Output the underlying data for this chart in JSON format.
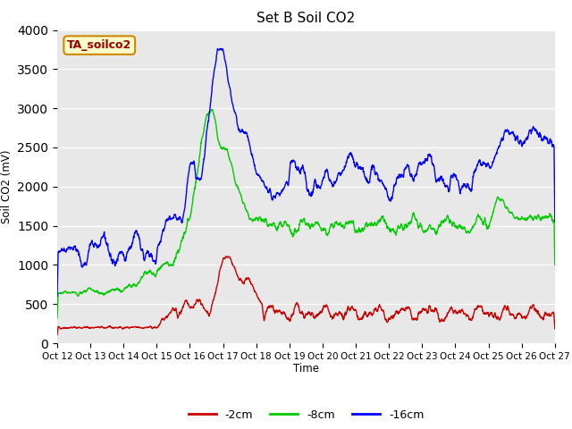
{
  "title": "Set B Soil CO2",
  "ylabel": "Soil CO2 (mV)",
  "xlabel": "Time",
  "ylim": [
    0,
    4000
  ],
  "plot_bg_color": "#e8e8e8",
  "fig_bg_color": "#ffffff",
  "annotation_label": "TA_soilco2",
  "annotation_bg": "#ffffcc",
  "annotation_border": "#cc8800",
  "legend_labels": [
    "-2cm",
    "-8cm",
    "-16cm"
  ],
  "legend_colors": [
    "#cc0000",
    "#00cc00",
    "#0000ff"
  ],
  "xtick_labels": [
    "Oct 12",
    "Oct 13",
    "Oct 14",
    "Oct 15",
    "Oct 16",
    "Oct 17",
    "Oct 18",
    "Oct 19",
    "Oct 20",
    "Oct 21",
    "Oct 22",
    "Oct 23",
    "Oct 24",
    "Oct 25",
    "Oct 26",
    "Oct 27"
  ],
  "n_points": 2000,
  "smooth_window": 8
}
